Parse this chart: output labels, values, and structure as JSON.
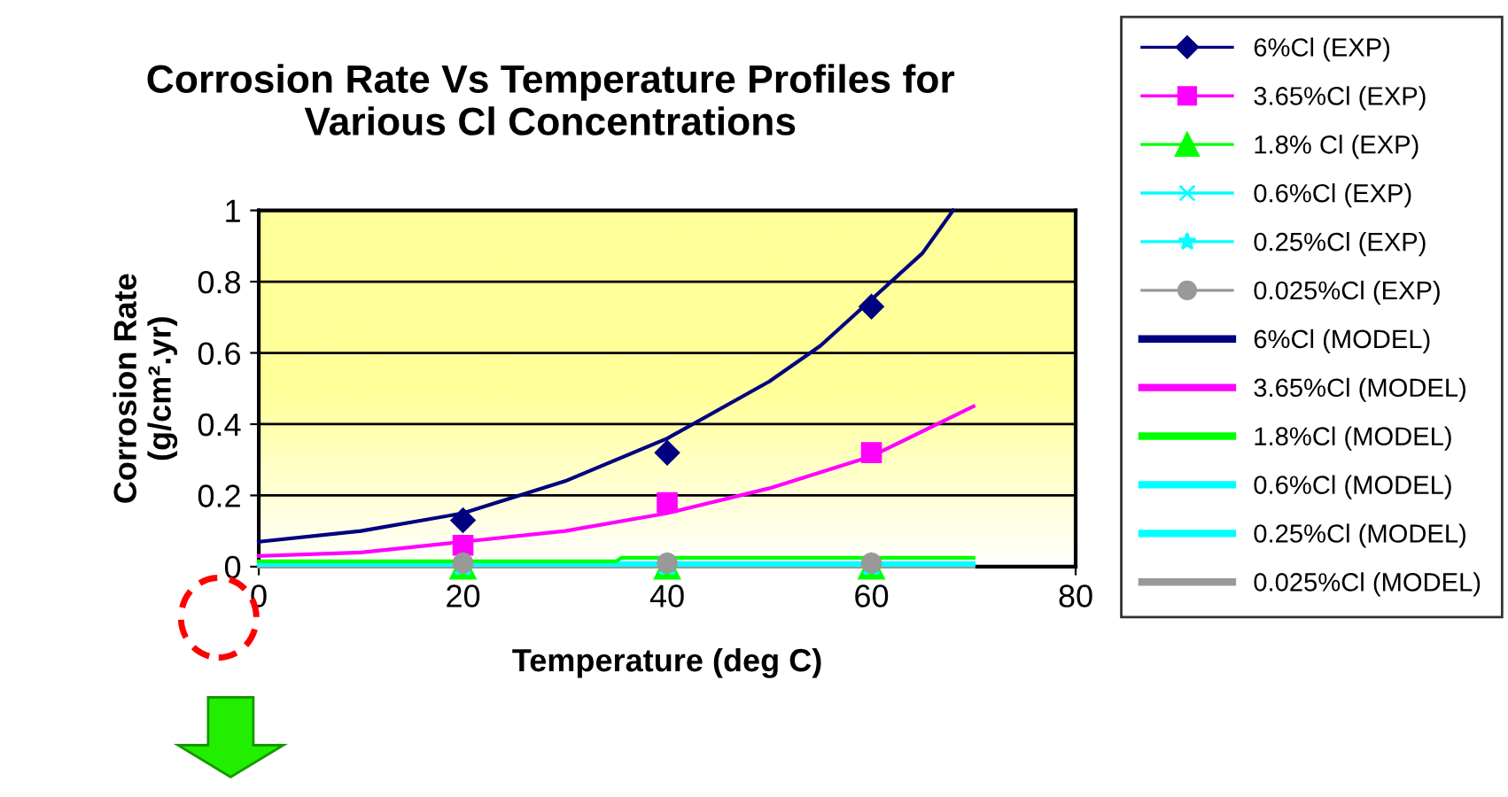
{
  "chart_data": {
    "type": "line",
    "title": "Corrosion Rate Vs Temperature Profiles for\nVarious Cl Concentrations",
    "xlabel": "Temperature (deg C)",
    "ylabel": "Corrosion Rate\n(g/cm².yr)",
    "xlim": [
      0,
      80
    ],
    "xticks": [
      0,
      20,
      40,
      60,
      80
    ],
    "ylim": [
      0,
      1
    ],
    "yticks": [
      0,
      0.2,
      0.4,
      0.6,
      0.8,
      1
    ],
    "grid": "y",
    "legend": "right",
    "series": [
      {
        "name": "6%Cl (EXP)",
        "type": "scatter",
        "marker": "diamond",
        "color": "#000080",
        "x": [
          20,
          40,
          60
        ],
        "values": [
          0.13,
          0.32,
          0.73
        ]
      },
      {
        "name": "3.65%Cl (EXP)",
        "type": "scatter",
        "marker": "square",
        "color": "#ff00ff",
        "x": [
          20,
          40,
          60
        ],
        "values": [
          0.06,
          0.18,
          0.32
        ]
      },
      {
        "name": "1.8% Cl (EXP)",
        "type": "scatter",
        "marker": "triangle",
        "color": "#00ff00",
        "x": [
          20,
          40,
          60
        ],
        "values": [
          0.0,
          0.0,
          0.0
        ]
      },
      {
        "name": "0.6%Cl (EXP)",
        "type": "scatter",
        "marker": "cross",
        "color": "#00ffff",
        "x": [
          20,
          40,
          60
        ],
        "values": [
          0.0,
          0.0,
          0.0
        ]
      },
      {
        "name": "0.25%Cl (EXP)",
        "type": "scatter",
        "marker": "star",
        "color": "#00ffff",
        "x": [
          20,
          40,
          60
        ],
        "values": [
          0.0,
          0.0,
          0.0
        ]
      },
      {
        "name": "0.025%Cl (EXP)",
        "type": "scatter",
        "marker": "circle",
        "color": "#999999",
        "x": [
          20,
          40,
          60
        ],
        "values": [
          0.01,
          0.01,
          0.01
        ]
      },
      {
        "name": "6%Cl (MODEL)",
        "color": "#000080",
        "x": [
          0,
          10,
          20,
          30,
          40,
          50,
          55,
          60,
          65,
          68
        ],
        "values": [
          0.07,
          0.1,
          0.15,
          0.24,
          0.36,
          0.52,
          0.62,
          0.75,
          0.88,
          1.0
        ]
      },
      {
        "name": "3.65%Cl (MODEL)",
        "color": "#ff00ff",
        "x": [
          0,
          10,
          20,
          30,
          40,
          50,
          60,
          70
        ],
        "values": [
          0.03,
          0.04,
          0.07,
          0.1,
          0.15,
          0.22,
          0.31,
          0.45
        ]
      },
      {
        "name": "1.8%Cl (MODEL)",
        "color": "#00ff00",
        "x": [
          0,
          35,
          35.5,
          70
        ],
        "values": [
          0.015,
          0.015,
          0.025,
          0.025
        ]
      },
      {
        "name": "0.6%Cl (MODEL)",
        "color": "#00ffff",
        "x": [
          0,
          70
        ],
        "values": [
          0.01,
          0.01
        ]
      },
      {
        "name": "0.25%Cl (MODEL)",
        "color": "#00ffff",
        "x": [
          0,
          70
        ],
        "values": [
          0.005,
          0.005
        ]
      },
      {
        "name": "0.025%Cl (MODEL)",
        "color": "#999999",
        "x": [
          0,
          70
        ],
        "values": [
          0.0,
          0.0
        ]
      }
    ]
  }
}
